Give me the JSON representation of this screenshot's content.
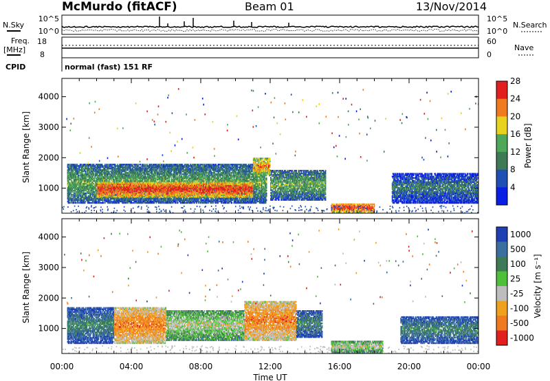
{
  "header": {
    "station": "McMurdo (fitACF)",
    "beam": "Beam 01",
    "date": "13/Nov/2014"
  },
  "housekeeping": {
    "nsky_label": "N.Sky",
    "nsky_ticks": [
      "10^5",
      "10^0"
    ],
    "nsearch_label": "N.Search",
    "nsearch_ticks": [
      "10^5",
      "10^0"
    ],
    "freq_label": "Freq.",
    "freq_unit": "[MHz]",
    "freq_ticks": [
      "18",
      "8"
    ],
    "nave_label": "Nave",
    "nave_ticks": [
      "60",
      "0"
    ],
    "cpid_label": "CPID",
    "cpid_text": "normal (fast) 151 RF"
  },
  "chart_data": [
    {
      "type": "heatmap",
      "name": "power",
      "ylabel": "Slant Range [km]",
      "xlabel": "Time UT",
      "ylim": [
        180,
        4600
      ],
      "xlim": [
        0,
        24
      ],
      "yticks": [
        "1000",
        "2000",
        "3000",
        "4000"
      ],
      "ytick_values": [
        1000,
        2000,
        3000,
        4000
      ],
      "colorbar": {
        "label": "Power [dB]",
        "ticks": [
          "4",
          "8",
          "12",
          "16",
          "20",
          "24",
          "28"
        ],
        "colors": [
          "#0a1fe6",
          "#1f4fb5",
          "#3d7a55",
          "#4fa85a",
          "#e6d21f",
          "#f07a1f",
          "#e21f1f"
        ]
      },
      "bands": [
        {
          "t0": 0.3,
          "t1": 11.8,
          "r0": 500,
          "r1": 1800,
          "level": 3
        },
        {
          "t0": 2.0,
          "t1": 11.0,
          "r0": 700,
          "r1": 1200,
          "level": 6
        },
        {
          "t0": 11.0,
          "t1": 12.0,
          "r0": 1400,
          "r1": 2000,
          "level": 5
        },
        {
          "t0": 12.0,
          "t1": 15.2,
          "r0": 600,
          "r1": 1600,
          "level": 3
        },
        {
          "t0": 15.5,
          "t1": 18.0,
          "r0": 200,
          "r1": 500,
          "level": 6
        },
        {
          "t0": 19.0,
          "t1": 24.0,
          "r0": 500,
          "r1": 1500,
          "level": 2
        }
      ]
    },
    {
      "type": "heatmap",
      "name": "velocity",
      "ylabel": "Slant Range [km]",
      "xlabel": "Time UT",
      "ylim": [
        180,
        4600
      ],
      "xlim": [
        0,
        24
      ],
      "yticks": [
        "1000",
        "2000",
        "3000",
        "4000"
      ],
      "ytick_values": [
        1000,
        2000,
        3000,
        4000
      ],
      "colorbar": {
        "label": "Velocity [m s⁻¹]",
        "ticks": [
          "1000",
          "500",
          "100",
          "25",
          "-25",
          "-100",
          "-500",
          "-1000"
        ],
        "colors": [
          "#1f3fb5",
          "#3a6fa0",
          "#3d7a55",
          "#4fbf3a",
          "#bdbdbd",
          "#f0a01f",
          "#f07a1f",
          "#e21f1f"
        ]
      },
      "bands": [
        {
          "t0": 0.3,
          "t1": 3.0,
          "r0": 500,
          "r1": 1700,
          "level": 2
        },
        {
          "t0": 3.0,
          "t1": 6.0,
          "r0": 500,
          "r1": 1700,
          "level": 6
        },
        {
          "t0": 6.0,
          "t1": 10.5,
          "r0": 600,
          "r1": 1600,
          "level": 4
        },
        {
          "t0": 10.5,
          "t1": 13.5,
          "r0": 600,
          "r1": 1900,
          "level": 6
        },
        {
          "t0": 13.5,
          "t1": 15.0,
          "r0": 700,
          "r1": 1600,
          "level": 2
        },
        {
          "t0": 15.5,
          "t1": 18.5,
          "r0": 200,
          "r1": 600,
          "level": 4
        },
        {
          "t0": 19.5,
          "t1": 24.0,
          "r0": 500,
          "r1": 1400,
          "level": 2
        }
      ]
    }
  ],
  "x_axis": {
    "label": "Time UT",
    "ticks": [
      "00:00",
      "04:00",
      "08:00",
      "12:00",
      "16:00",
      "20:00",
      "00:00"
    ]
  }
}
